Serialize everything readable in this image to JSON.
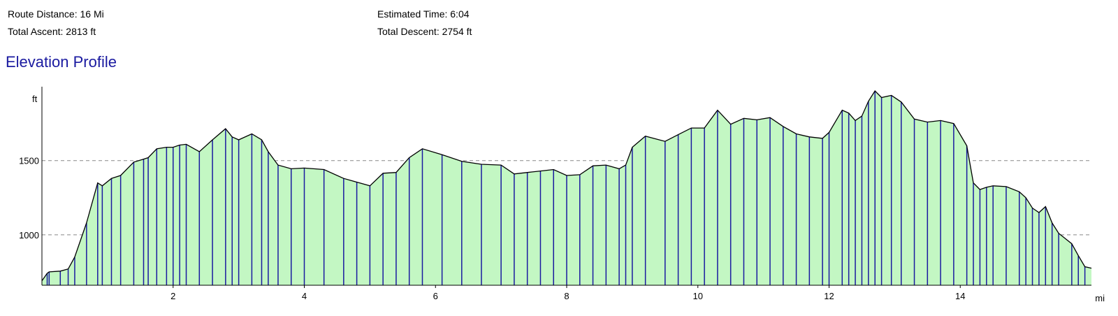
{
  "stats": {
    "route_distance_label": "Route Distance:",
    "route_distance_value": "16 Mi",
    "total_ascent_label": "Total Ascent:",
    "total_ascent_value": "2813 ft",
    "estimated_time_label": "Estimated Time:",
    "estimated_time_value": "6:04",
    "total_descent_label": "Total Descent:",
    "total_descent_value": "2754 ft"
  },
  "chart_title": "Elevation Profile",
  "colors": {
    "fill": "#c3f7c3",
    "outline": "#000000",
    "markers": "#1a1aa0",
    "title": "#1a1aa0",
    "gridline": "#888888"
  },
  "chart_data": {
    "type": "area",
    "title": "Elevation Profile",
    "xlabel": "mi",
    "ylabel": "ft",
    "xlim": [
      0,
      16
    ],
    "ylim": [
      660,
      1970
    ],
    "x_ticks": [
      2,
      4,
      6,
      8,
      10,
      12,
      14
    ],
    "y_ticks": [
      1000,
      1500
    ],
    "grid": "dashed horizontal lines at y ticks",
    "x": [
      0.0,
      0.08,
      0.11,
      0.28,
      0.4,
      0.5,
      0.68,
      0.85,
      0.92,
      1.06,
      1.2,
      1.4,
      1.55,
      1.62,
      1.75,
      1.9,
      2.0,
      2.1,
      2.2,
      2.4,
      2.6,
      2.8,
      2.9,
      3.0,
      3.2,
      3.35,
      3.45,
      3.6,
      3.8,
      4.0,
      4.3,
      4.6,
      4.8,
      5.0,
      5.2,
      5.4,
      5.6,
      5.8,
      6.1,
      6.4,
      6.7,
      7.0,
      7.2,
      7.4,
      7.6,
      7.8,
      8.0,
      8.2,
      8.4,
      8.6,
      8.8,
      8.9,
      9.0,
      9.2,
      9.5,
      9.7,
      9.9,
      10.1,
      10.3,
      10.5,
      10.7,
      10.9,
      11.1,
      11.3,
      11.5,
      11.7,
      11.9,
      12.0,
      12.2,
      12.3,
      12.4,
      12.5,
      12.6,
      12.7,
      12.8,
      12.95,
      13.1,
      13.3,
      13.5,
      13.7,
      13.9,
      14.1,
      14.2,
      14.3,
      14.4,
      14.5,
      14.7,
      14.9,
      15.0,
      15.1,
      15.2,
      15.3,
      15.4,
      15.5,
      15.7,
      15.8,
      15.9,
      16.0
    ],
    "y": [
      690,
      740,
      750,
      755,
      770,
      850,
      1080,
      1350,
      1330,
      1380,
      1400,
      1490,
      1510,
      1520,
      1580,
      1590,
      1590,
      1605,
      1610,
      1560,
      1640,
      1715,
      1660,
      1640,
      1680,
      1640,
      1560,
      1470,
      1445,
      1450,
      1440,
      1380,
      1355,
      1330,
      1415,
      1420,
      1520,
      1580,
      1540,
      1495,
      1475,
      1470,
      1410,
      1420,
      1430,
      1440,
      1400,
      1405,
      1465,
      1470,
      1445,
      1470,
      1590,
      1665,
      1630,
      1675,
      1720,
      1720,
      1840,
      1745,
      1785,
      1775,
      1790,
      1730,
      1680,
      1660,
      1650,
      1690,
      1840,
      1820,
      1770,
      1800,
      1900,
      1970,
      1925,
      1940,
      1895,
      1780,
      1760,
      1770,
      1750,
      1600,
      1350,
      1305,
      1320,
      1330,
      1325,
      1290,
      1250,
      1180,
      1150,
      1190,
      1080,
      1010,
      940,
      860,
      785,
      775
    ]
  }
}
